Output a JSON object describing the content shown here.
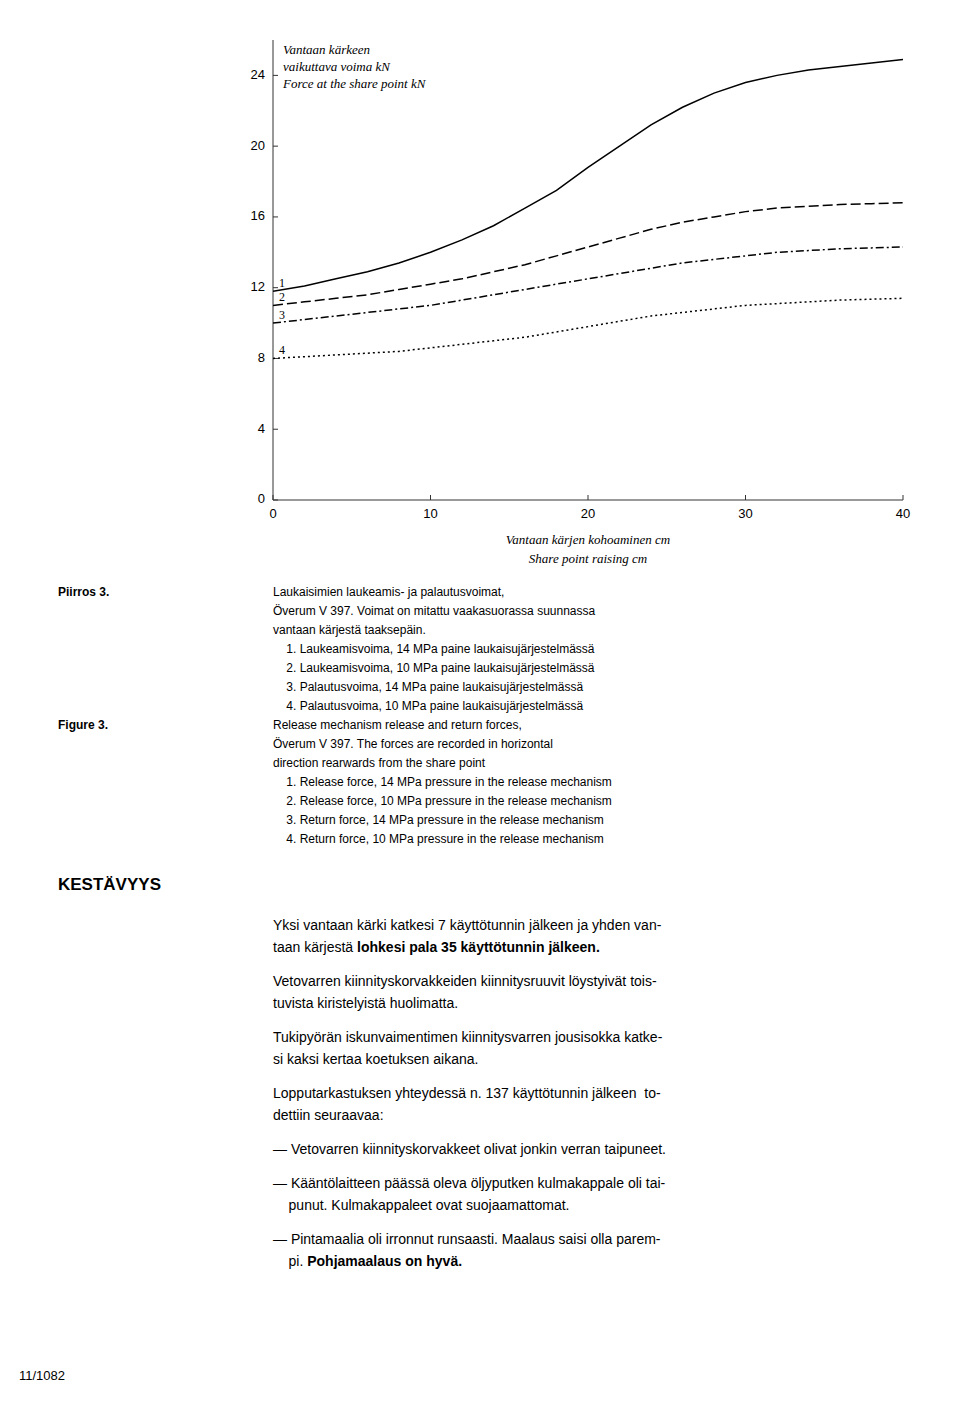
{
  "chart_data": {
    "type": "line",
    "x": [
      0,
      2,
      4,
      6,
      8,
      10,
      12,
      14,
      16,
      18,
      20,
      22,
      24,
      26,
      28,
      30,
      32,
      34,
      36,
      38,
      40
    ],
    "series": [
      {
        "name": "1",
        "color": "black",
        "line_style": "solid",
        "values": [
          11.8,
          12.1,
          12.5,
          12.9,
          13.4,
          14.0,
          14.7,
          15.5,
          16.5,
          17.5,
          18.8,
          20.0,
          21.2,
          22.2,
          23.0,
          23.6,
          24.0,
          24.3,
          24.5,
          24.7,
          24.9
        ]
      },
      {
        "name": "2",
        "color": "black",
        "line_style": "dashed",
        "values": [
          11.0,
          11.2,
          11.4,
          11.6,
          11.9,
          12.2,
          12.5,
          12.9,
          13.3,
          13.8,
          14.3,
          14.8,
          15.3,
          15.7,
          16.0,
          16.3,
          16.5,
          16.6,
          16.7,
          16.75,
          16.8
        ]
      },
      {
        "name": "3",
        "color": "black",
        "line_style": "dashdot",
        "values": [
          10.0,
          10.2,
          10.4,
          10.6,
          10.8,
          11.0,
          11.3,
          11.6,
          11.9,
          12.2,
          12.5,
          12.8,
          13.1,
          13.4,
          13.6,
          13.8,
          14.0,
          14.1,
          14.2,
          14.25,
          14.3
        ]
      },
      {
        "name": "4",
        "color": "black",
        "line_style": "dotted",
        "values": [
          8.0,
          8.1,
          8.2,
          8.3,
          8.4,
          8.6,
          8.8,
          9.0,
          9.2,
          9.5,
          9.8,
          10.1,
          10.4,
          10.6,
          10.8,
          11.0,
          11.1,
          11.2,
          11.3,
          11.35,
          11.4
        ]
      }
    ],
    "x_label": [
      "Vantaan kärjen kohoaminen cm",
      "Share point raising cm"
    ],
    "y_label": [
      "Vantaan kärkeen",
      "vaikuttava voima kN",
      "Force at the share point kN"
    ],
    "xlim": [
      0,
      40
    ],
    "ylim": [
      0,
      26
    ],
    "xticks": [
      0,
      10,
      20,
      30,
      40
    ],
    "yticks": [
      0,
      4,
      8,
      12,
      16,
      20,
      24
    ],
    "grid": false,
    "legend": false
  },
  "page": {
    "captions": [
      {
        "label": "Piirros 3.",
        "lines": [
          "Laukaisimien laukeamis- ja palautusvoimat,",
          "Överum V 397. Voimat on mitattu vaakasuorassa suunnassa",
          "vantaan kärjestä taaksepäin.",
          "    1. Laukeamisvoima, 14 MPa paine laukaisujärjestelmässä",
          "    2. Laukeamisvoima, 10 MPa paine laukaisujärjestelmässä",
          "    3. Palautusvoima, 14 MPa paine laukaisujärjestelmässä",
          "    4. Palautusvoima, 10 MPa paine laukaisujärjestelmässä"
        ]
      },
      {
        "label": "Figure 3.",
        "lines": [
          "Release mechanism release and return forces,",
          "Överum V 397. The forces are recorded in horizontal",
          "direction rearwards from the share point",
          "    1. Release force, 14 MPa pressure in the release mechanism",
          "    2. Release force, 10 MPa pressure in the release mechanism",
          "    3. Return force, 14 MPa pressure in the release mechanism",
          "    4. Return force, 10 MPa pressure in the release mechanism"
        ]
      }
    ],
    "heading": "KESTÄVYYS",
    "paragraphs": [
      [
        [
          {
            "text": "Yksi vantaan kärki katkesi 7 käyttötunnin jälkeen ja yhden van-",
            "bold": false
          }
        ],
        [
          {
            "text": "taan kärjestä ",
            "bold": false
          },
          {
            "text": "lohkesi pala 35 käyttötunnin jälkeen.",
            "bold": true
          }
        ]
      ],
      [
        [
          {
            "text": "Vetovarren kiinnityskorvakkeiden kiinnitysruuvit löystyivät tois-",
            "bold": false
          }
        ],
        [
          {
            "text": "tuvista kiristelyistä huolimatta.",
            "bold": false
          }
        ]
      ],
      [
        [
          {
            "text": "Tukipyörän iskunvaimentimen kiinnitysvarren jousisokka katke-",
            "bold": false
          }
        ],
        [
          {
            "text": "si kaksi kertaa koetuksen aikana.",
            "bold": false
          }
        ]
      ],
      [
        [
          {
            "text": "Lopputarkastuksen yhteydessä n. 137 käyttötunnin jälkeen  to-",
            "bold": false
          }
        ],
        [
          {
            "text": "dettiin seuraavaa:",
            "bold": false
          }
        ]
      ],
      [
        [
          {
            "text": "— Vetovarren kiinnityskorvakkeet olivat jonkin verran taipuneet.",
            "bold": false
          }
        ]
      ],
      [
        [
          {
            "text": "— Kääntölaitteen päässä oleva öljyputken kulmakappale oli tai-",
            "bold": false
          }
        ],
        [
          {
            "text": "    punut. Kulmakappaleet ovat suojaamattomat.",
            "bold": false
          }
        ]
      ],
      [
        [
          {
            "text": "— Pintamaalia oli irronnut runsaasti. Maalaus saisi olla parem-",
            "bold": false
          }
        ],
        [
          {
            "text": "    pi. ",
            "bold": false
          },
          {
            "text": "Pohjamaalaus on hyvä.",
            "bold": true
          }
        ]
      ]
    ],
    "footer": "11/1082"
  }
}
